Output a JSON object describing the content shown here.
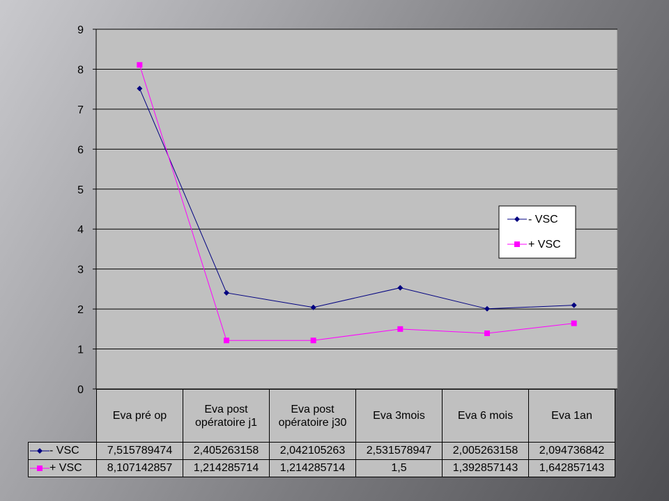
{
  "chart_data": {
    "type": "line",
    "categories": [
      "Eva pré op",
      "Eva post opératoire j1",
      "Eva post opératoire j30",
      "Eva 3mois",
      "Eva 6 mois",
      "Eva 1an"
    ],
    "series": [
      {
        "name": "- VSC",
        "color": "#000080",
        "marker": "diamond",
        "values": [
          7.515789474,
          2.405263158,
          2.042105263,
          2.531578947,
          2.005263158,
          2.094736842
        ],
        "value_labels": [
          "7,515789474",
          "2,405263158",
          "2,042105263",
          "2,531578947",
          "2,005263158",
          "2,094736842"
        ]
      },
      {
        "name": "+ VSC",
        "color": "#ff00ff",
        "marker": "square",
        "values": [
          8.107142857,
          1.214285714,
          1.214285714,
          1.5,
          1.392857143,
          1.642857143
        ],
        "value_labels": [
          "8,107142857",
          "1,214285714",
          "1,214285714",
          "1,5",
          "1,392857143",
          "1,642857143"
        ]
      }
    ],
    "ylim": [
      0,
      9
    ],
    "yticks": [
      0,
      1,
      2,
      3,
      4,
      5,
      6,
      7,
      8,
      9
    ],
    "grid": true,
    "legend": "right",
    "data_table": true,
    "plot_background": "#c0c0c0"
  }
}
